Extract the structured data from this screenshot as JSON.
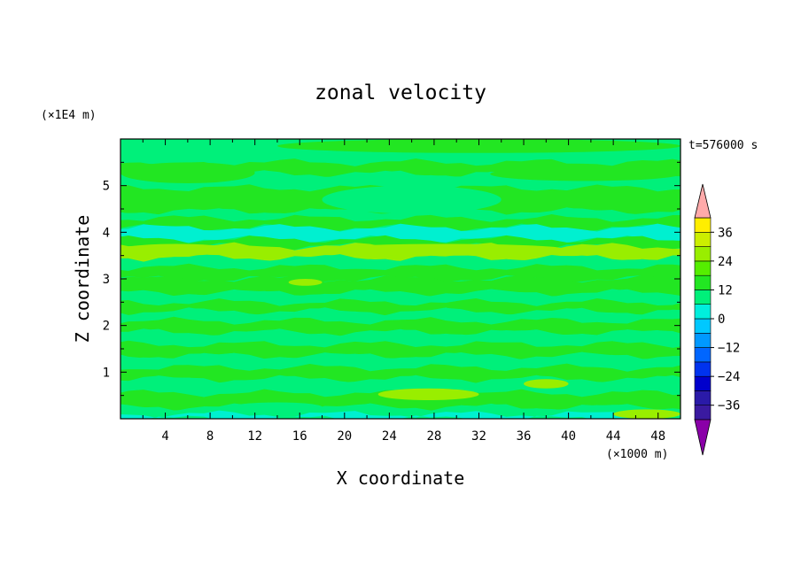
{
  "chart_data": {
    "type": "heatmap",
    "title": "zonal velocity",
    "xlabel": "X coordinate",
    "ylabel": "Z coordinate",
    "x_unit": "(×1000 m)",
    "y_unit": "(×1E4 m)",
    "time_label": "t=576000 s",
    "xlim": [
      0,
      50
    ],
    "ylim": [
      0,
      6
    ],
    "x_ticks": [
      4,
      8,
      12,
      16,
      20,
      24,
      28,
      32,
      36,
      40,
      44,
      48
    ],
    "y_ticks": [
      1,
      2,
      3,
      4,
      5
    ],
    "colorbar": {
      "range": [
        -42,
        42
      ],
      "step": 6,
      "tick_values": [
        36,
        24,
        12,
        0,
        -12,
        -24,
        -36
      ],
      "tick_labels": [
        "36",
        "24",
        "12",
        "0",
        "−12",
        "−24",
        "−36"
      ],
      "colors": [
        "#8a00a8",
        "#3a1aa0",
        "#2a1aa8",
        "#0000cc",
        "#0033ee",
        "#0066ff",
        "#0099ff",
        "#00c8ff",
        "#00eedd",
        "#00f07a",
        "#22e622",
        "#55ee00",
        "#99ee00",
        "#ccee00",
        "#ffee00",
        "#ffc000",
        "#ff9900",
        "#ff6600",
        "#ff3300",
        "#ff0000",
        "#ffaaaa"
      ]
    },
    "colors": {
      "cyan": "#00f0d0",
      "light_green": "#00f07a",
      "green": "#22e622",
      "yellow_green": "#99ee00"
    },
    "bands": [
      {
        "z0": 5.7,
        "z1": 6.0,
        "level": 0
      },
      {
        "z0": 5.5,
        "z1": 5.7,
        "level": 0
      },
      {
        "z0": 5.25,
        "z1": 5.5,
        "level": 1
      },
      {
        "z0": 4.95,
        "z1": 5.25,
        "level": 0
      },
      {
        "z0": 4.45,
        "z1": 4.95,
        "level": 1
      },
      {
        "z0": 4.3,
        "z1": 4.45,
        "level": 0
      },
      {
        "z0": 4.1,
        "z1": 4.3,
        "level": 1
      },
      {
        "z0": 3.85,
        "z1": 4.1,
        "level": -1
      },
      {
        "z0": 3.7,
        "z1": 3.85,
        "level": 1
      },
      {
        "z0": 3.45,
        "z1": 3.7,
        "level": 2
      },
      {
        "z0": 3.25,
        "z1": 3.45,
        "level": 0
      },
      {
        "z0": 3.0,
        "z1": 3.25,
        "level": 1
      },
      {
        "z0": 2.7,
        "z1": 3.0,
        "level": 1
      },
      {
        "z0": 2.5,
        "z1": 2.7,
        "level": 0
      },
      {
        "z0": 2.3,
        "z1": 2.5,
        "level": 1
      },
      {
        "z0": 2.1,
        "z1": 2.3,
        "level": 0
      },
      {
        "z0": 1.85,
        "z1": 2.1,
        "level": 1
      },
      {
        "z0": 1.6,
        "z1": 1.85,
        "level": 0
      },
      {
        "z0": 1.35,
        "z1": 1.6,
        "level": 1
      },
      {
        "z0": 1.1,
        "z1": 1.35,
        "level": 0
      },
      {
        "z0": 0.85,
        "z1": 1.1,
        "level": 1
      },
      {
        "z0": 0.55,
        "z1": 0.85,
        "level": 0
      },
      {
        "z0": 0.25,
        "z1": 0.55,
        "level": 1
      },
      {
        "z0": 0.1,
        "z1": 0.25,
        "level": 0
      },
      {
        "z0": 0.0,
        "z1": 0.1,
        "level": -1
      }
    ],
    "patches": [
      {
        "x0": 0,
        "x1": 8,
        "z0": 5.45,
        "z1": 6.0,
        "level": 0
      },
      {
        "x0": 14,
        "x1": 50,
        "z0": 5.7,
        "z1": 6.0,
        "level": 1
      },
      {
        "x0": 0,
        "x1": 12,
        "z0": 5.05,
        "z1": 5.5,
        "level": 1
      },
      {
        "x0": 33,
        "x1": 50,
        "z0": 5.1,
        "z1": 5.4,
        "level": 1
      },
      {
        "x0": 18,
        "x1": 34,
        "z0": 4.4,
        "z1": 5.0,
        "level": 0
      },
      {
        "x0": 0,
        "x1": 10,
        "z0": 3.5,
        "z1": 3.75,
        "level": 2
      },
      {
        "x0": 18,
        "x1": 40,
        "z0": 3.5,
        "z1": 3.75,
        "level": 2
      },
      {
        "x0": 15,
        "x1": 18,
        "z0": 2.85,
        "z1": 3.0,
        "level": 2
      },
      {
        "x0": 23,
        "x1": 32,
        "z0": 0.4,
        "z1": 0.65,
        "level": 2
      },
      {
        "x0": 36,
        "x1": 40,
        "z0": 0.65,
        "z1": 0.85,
        "level": 2
      },
      {
        "x0": 10,
        "x1": 18,
        "z0": 0.15,
        "z1": 0.35,
        "level": 0
      },
      {
        "x0": 44,
        "x1": 50,
        "z0": 0.0,
        "z1": 0.2,
        "level": 2
      }
    ]
  }
}
